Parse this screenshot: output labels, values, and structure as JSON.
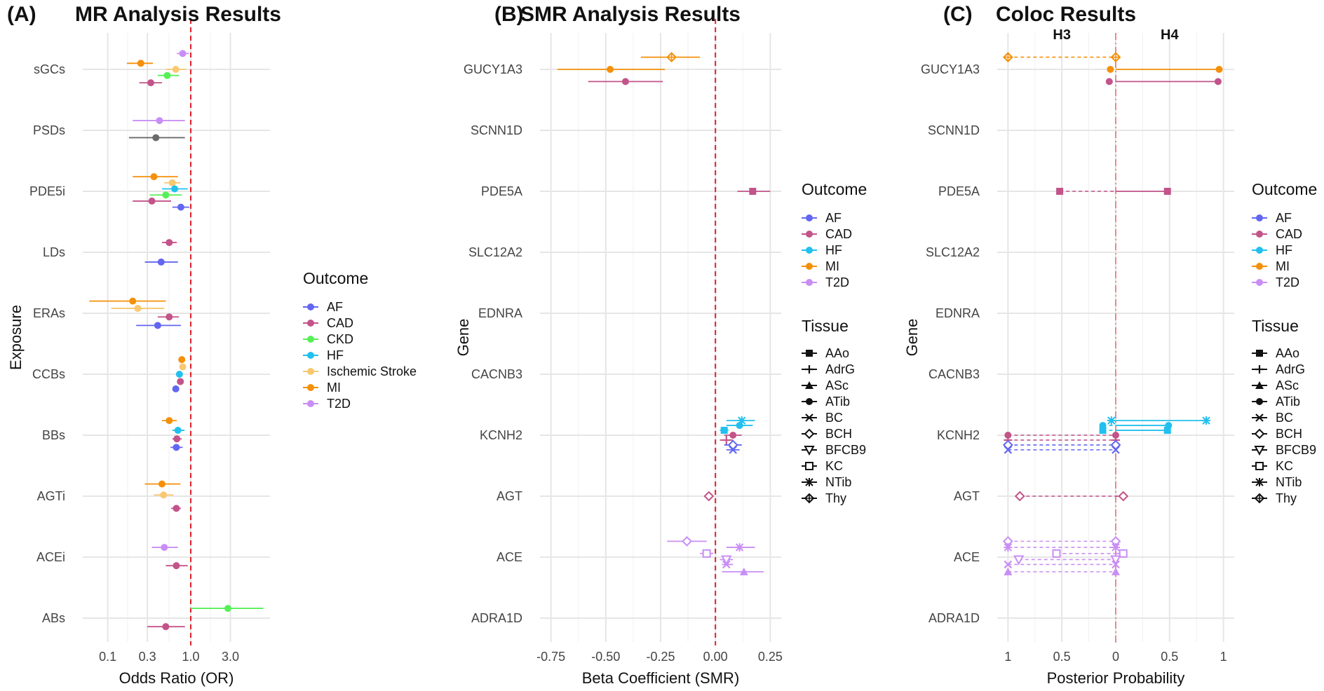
{
  "chart_data": [
    {
      "panel": "(A)",
      "title": "MR Analysis Results",
      "type": "forest",
      "xlabel": "Odds Ratio (OR)",
      "ylabel": "Exposure",
      "xscale": "log",
      "xticks": [
        0.1,
        0.3,
        1.0,
        3.0
      ],
      "xticklabels": [
        "0.1",
        "0.3",
        "1.0",
        "3.0"
      ],
      "xlim": [
        0.05,
        9
      ],
      "reference_line": 1.0,
      "categories": [
        "sGCs",
        "PSDs",
        "PDE5i",
        "LDs",
        "ERAs",
        "CCBs",
        "BBs",
        "AGTi",
        "ACEi",
        "ABs"
      ],
      "legend": {
        "title": "Outcome",
        "items": [
          {
            "name": "AF",
            "color": "#6366f1"
          },
          {
            "name": "CAD",
            "color": "#c2548a"
          },
          {
            "name": "CKD",
            "color": "#56f056"
          },
          {
            "name": "HF",
            "color": "#22c0ee"
          },
          {
            "name": "Ischemic Stroke",
            "color": "#f9c870"
          },
          {
            "name": "MI",
            "color": "#f5900a"
          },
          {
            "name": "T2D",
            "color": "#c98ef5"
          }
        ]
      },
      "points": [
        {
          "cat": "sGCs",
          "outcome": "T2D",
          "or": 0.8,
          "lo": 0.68,
          "hi": 0.95,
          "offset": -0.26
        },
        {
          "cat": "sGCs",
          "outcome": "MI",
          "or": 0.25,
          "lo": 0.17,
          "hi": 0.35,
          "offset": -0.1
        },
        {
          "cat": "sGCs",
          "outcome": "Ischemic Stroke",
          "or": 0.66,
          "lo": 0.5,
          "hi": 0.88,
          "offset": 0.0
        },
        {
          "cat": "sGCs",
          "outcome": "CKD",
          "or": 0.52,
          "lo": 0.4,
          "hi": 0.72,
          "offset": 0.1
        },
        {
          "cat": "sGCs",
          "outcome": "CAD",
          "or": 0.33,
          "lo": 0.24,
          "hi": 0.45,
          "offset": 0.22
        },
        {
          "cat": "PSDs",
          "outcome": "T2D",
          "or": 0.42,
          "lo": 0.2,
          "hi": 0.85,
          "offset": -0.16
        },
        {
          "cat": "PSDs",
          "outcome": "Unlabeled (grey)",
          "or": 0.38,
          "lo": 0.18,
          "hi": 0.85,
          "offset": 0.12
        },
        {
          "cat": "PDE5i",
          "outcome": "MI",
          "or": 0.36,
          "lo": 0.2,
          "hi": 0.7,
          "offset": -0.24
        },
        {
          "cat": "PDE5i",
          "outcome": "Ischemic Stroke",
          "or": 0.6,
          "lo": 0.48,
          "hi": 0.75,
          "offset": -0.14
        },
        {
          "cat": "PDE5i",
          "outcome": "HF",
          "or": 0.64,
          "lo": 0.45,
          "hi": 0.92,
          "offset": -0.04
        },
        {
          "cat": "PDE5i",
          "outcome": "CKD",
          "or": 0.5,
          "lo": 0.32,
          "hi": 0.78,
          "offset": 0.06
        },
        {
          "cat": "PDE5i",
          "outcome": "CAD",
          "or": 0.34,
          "lo": 0.2,
          "hi": 0.58,
          "offset": 0.16
        },
        {
          "cat": "PDE5i",
          "outcome": "AF",
          "or": 0.76,
          "lo": 0.6,
          "hi": 0.96,
          "offset": 0.26
        },
        {
          "cat": "LDs",
          "outcome": "CAD",
          "or": 0.55,
          "lo": 0.45,
          "hi": 0.68,
          "offset": -0.16
        },
        {
          "cat": "LDs",
          "outcome": "AF",
          "or": 0.44,
          "lo": 0.28,
          "hi": 0.7,
          "offset": 0.16
        },
        {
          "cat": "ERAs",
          "outcome": "MI",
          "or": 0.2,
          "lo": 0.06,
          "hi": 0.5,
          "offset": -0.2
        },
        {
          "cat": "ERAs",
          "outcome": "Ischemic Stroke",
          "or": 0.23,
          "lo": 0.11,
          "hi": 0.48,
          "offset": -0.08
        },
        {
          "cat": "ERAs",
          "outcome": "CAD",
          "or": 0.55,
          "lo": 0.4,
          "hi": 0.72,
          "offset": 0.06
        },
        {
          "cat": "ERAs",
          "outcome": "AF",
          "or": 0.4,
          "lo": 0.22,
          "hi": 0.76,
          "offset": 0.2
        },
        {
          "cat": "CCBs",
          "outcome": "MI",
          "or": 0.78,
          "lo": 0.72,
          "hi": 0.84,
          "offset": -0.24
        },
        {
          "cat": "CCBs",
          "outcome": "Ischemic Stroke",
          "or": 0.8,
          "lo": 0.73,
          "hi": 0.88,
          "offset": -0.12
        },
        {
          "cat": "CCBs",
          "outcome": "HF",
          "or": 0.73,
          "lo": 0.67,
          "hi": 0.8,
          "offset": 0.0
        },
        {
          "cat": "CCBs",
          "outcome": "CAD",
          "or": 0.75,
          "lo": 0.7,
          "hi": 0.81,
          "offset": 0.12
        },
        {
          "cat": "CCBs",
          "outcome": "AF",
          "or": 0.66,
          "lo": 0.62,
          "hi": 0.7,
          "offset": 0.24
        },
        {
          "cat": "BBs",
          "outcome": "MI",
          "or": 0.55,
          "lo": 0.45,
          "hi": 0.68,
          "offset": -0.24
        },
        {
          "cat": "BBs",
          "outcome": "HF",
          "or": 0.7,
          "lo": 0.6,
          "hi": 0.84,
          "offset": -0.08
        },
        {
          "cat": "BBs",
          "outcome": "CAD",
          "or": 0.68,
          "lo": 0.6,
          "hi": 0.78,
          "offset": 0.06
        },
        {
          "cat": "BBs",
          "outcome": "AF",
          "or": 0.67,
          "lo": 0.57,
          "hi": 0.8,
          "offset": 0.2
        },
        {
          "cat": "AGTi",
          "outcome": "MI",
          "or": 0.45,
          "lo": 0.28,
          "hi": 0.75,
          "offset": -0.2
        },
        {
          "cat": "AGTi",
          "outcome": "Ischemic Stroke",
          "or": 0.47,
          "lo": 0.36,
          "hi": 0.62,
          "offset": -0.02
        },
        {
          "cat": "AGTi",
          "outcome": "CAD",
          "or": 0.67,
          "lo": 0.58,
          "hi": 0.76,
          "offset": 0.2
        },
        {
          "cat": "ACEi",
          "outcome": "T2D",
          "or": 0.48,
          "lo": 0.34,
          "hi": 0.7,
          "offset": -0.16
        },
        {
          "cat": "ACEi",
          "outcome": "CAD",
          "or": 0.67,
          "lo": 0.5,
          "hi": 0.92,
          "offset": 0.14
        },
        {
          "cat": "ABs",
          "outcome": "CKD",
          "or": 2.8,
          "lo": 1.0,
          "hi": 7.5,
          "offset": -0.16
        },
        {
          "cat": "ABs",
          "outcome": "CAD",
          "or": 0.5,
          "lo": 0.3,
          "hi": 0.85,
          "offset": 0.14
        }
      ]
    },
    {
      "panel": "(B)",
      "title": "SMR Analysis Results",
      "type": "forest",
      "xlabel": "Beta Coefficient (SMR)",
      "ylabel": "Gene",
      "xticks": [
        -0.75,
        -0.5,
        -0.25,
        0.0,
        0.25
      ],
      "xticklabels": [
        "-0.75",
        "-0.50",
        "-0.25",
        "0.00",
        "0.25"
      ],
      "xlim": [
        -0.8,
        0.3
      ],
      "reference_line": 0.0,
      "categories": [
        "GUCY1A3",
        "SCNN1D",
        "PDE5A",
        "SLC12A2",
        "EDNRA",
        "CACNB3",
        "KCNH2",
        "AGT",
        "ACE",
        "ADRA1D"
      ],
      "legend_outcome": {
        "title": "Outcome",
        "items": [
          {
            "name": "AF",
            "color": "#6366f1"
          },
          {
            "name": "CAD",
            "color": "#c2548a"
          },
          {
            "name": "HF",
            "color": "#22c0ee"
          },
          {
            "name": "MI",
            "color": "#f5900a"
          },
          {
            "name": "T2D",
            "color": "#c98ef5"
          }
        ]
      },
      "legend_tissue": {
        "title": "Tissue",
        "items": [
          {
            "name": "AAo",
            "shape": "square"
          },
          {
            "name": "AdrG",
            "shape": "plus"
          },
          {
            "name": "ASc",
            "shape": "triangle"
          },
          {
            "name": "ATib",
            "shape": "circle"
          },
          {
            "name": "BC",
            "shape": "cross"
          },
          {
            "name": "BCH",
            "shape": "diamond-open"
          },
          {
            "name": "BFCB9",
            "shape": "triangle-down-open"
          },
          {
            "name": "KC",
            "shape": "square-open"
          },
          {
            "name": "NTib",
            "shape": "asterisk"
          },
          {
            "name": "Thy",
            "shape": "diamond-plus"
          }
        ]
      },
      "points": [
        {
          "cat": "GUCY1A3",
          "outcome": "MI",
          "tissue": "Thy",
          "beta": -0.2,
          "lo": -0.34,
          "hi": -0.07,
          "offset": -0.2
        },
        {
          "cat": "GUCY1A3",
          "outcome": "MI",
          "tissue": "ATib",
          "beta": -0.48,
          "lo": -0.72,
          "hi": -0.23,
          "offset": 0.0
        },
        {
          "cat": "GUCY1A3",
          "outcome": "CAD",
          "tissue": "ATib",
          "beta": -0.41,
          "lo": -0.58,
          "hi": -0.24,
          "offset": 0.2
        },
        {
          "cat": "PDE5A",
          "outcome": "CAD",
          "tissue": "AAo",
          "beta": 0.17,
          "lo": 0.1,
          "hi": 0.25,
          "offset": 0.0
        },
        {
          "cat": "KCNH2",
          "outcome": "HF",
          "tissue": "NTib",
          "beta": 0.12,
          "lo": 0.05,
          "hi": 0.18,
          "offset": -0.24
        },
        {
          "cat": "KCNH2",
          "outcome": "HF",
          "tissue": "ATib",
          "beta": 0.11,
          "lo": 0.05,
          "hi": 0.17,
          "offset": -0.16
        },
        {
          "cat": "KCNH2",
          "outcome": "HF",
          "tissue": "AAo",
          "beta": 0.04,
          "lo": 0.02,
          "hi": 0.06,
          "offset": -0.08
        },
        {
          "cat": "KCNH2",
          "outcome": "CAD",
          "tissue": "ATib",
          "beta": 0.08,
          "lo": 0.04,
          "hi": 0.12,
          "offset": 0.0
        },
        {
          "cat": "KCNH2",
          "outcome": "CAD",
          "tissue": "AdrG",
          "beta": 0.05,
          "lo": 0.02,
          "hi": 0.08,
          "offset": 0.08
        },
        {
          "cat": "KCNH2",
          "outcome": "AF",
          "tissue": "BCH",
          "beta": 0.08,
          "lo": 0.04,
          "hi": 0.12,
          "offset": 0.16
        },
        {
          "cat": "KCNH2",
          "outcome": "AF",
          "tissue": "BC",
          "beta": 0.08,
          "lo": 0.05,
          "hi": 0.11,
          "offset": 0.24
        },
        {
          "cat": "AGT",
          "outcome": "CAD",
          "tissue": "BCH",
          "beta": -0.03,
          "lo": -0.05,
          "hi": -0.01,
          "offset": 0.0
        },
        {
          "cat": "ACE",
          "outcome": "T2D",
          "tissue": "BCH",
          "beta": -0.13,
          "lo": -0.22,
          "hi": -0.04,
          "offset": -0.26
        },
        {
          "cat": "ACE",
          "outcome": "T2D",
          "tissue": "NTib",
          "beta": 0.11,
          "lo": 0.05,
          "hi": 0.18,
          "offset": -0.16
        },
        {
          "cat": "ACE",
          "outcome": "T2D",
          "tissue": "KC",
          "beta": -0.04,
          "lo": -0.07,
          "hi": -0.01,
          "offset": -0.06
        },
        {
          "cat": "ACE",
          "outcome": "T2D",
          "tissue": "BFCB9",
          "beta": 0.05,
          "lo": 0.02,
          "hi": 0.08,
          "offset": 0.04
        },
        {
          "cat": "ACE",
          "outcome": "T2D",
          "tissue": "BC",
          "beta": 0.05,
          "lo": 0.03,
          "hi": 0.08,
          "offset": 0.12
        },
        {
          "cat": "ACE",
          "outcome": "T2D",
          "tissue": "ASc",
          "beta": 0.13,
          "lo": 0.03,
          "hi": 0.22,
          "offset": 0.24
        }
      ]
    },
    {
      "panel": "(C)",
      "title": "Coloc Results",
      "type": "dumbbell",
      "xlabel": "Posterior Probability",
      "ylabel": "Gene",
      "xticks": [
        -1,
        -0.5,
        0,
        0.5,
        1
      ],
      "xticklabels": [
        "1",
        "0.5",
        "0",
        "0.5",
        "1"
      ],
      "xlim": [
        -1.1,
        1.1
      ],
      "side_labels": {
        "left": "H3",
        "right": "H4"
      },
      "categories": [
        "GUCY1A3",
        "SCNN1D",
        "PDE5A",
        "SLC12A2",
        "EDNRA",
        "CACNB3",
        "KCNH2",
        "AGT",
        "ACE",
        "ADRA1D"
      ],
      "legend_outcome": {
        "title": "Outcome",
        "items": [
          {
            "name": "AF",
            "color": "#6366f1"
          },
          {
            "name": "CAD",
            "color": "#c2548a"
          },
          {
            "name": "HF",
            "color": "#22c0ee"
          },
          {
            "name": "MI",
            "color": "#f5900a"
          },
          {
            "name": "T2D",
            "color": "#c98ef5"
          }
        ]
      },
      "legend_tissue": {
        "title": "Tissue",
        "items": [
          {
            "name": "AAo",
            "shape": "square"
          },
          {
            "name": "AdrG",
            "shape": "plus"
          },
          {
            "name": "ASc",
            "shape": "triangle"
          },
          {
            "name": "ATib",
            "shape": "circle"
          },
          {
            "name": "BC",
            "shape": "cross"
          },
          {
            "name": "BCH",
            "shape": "diamond-open"
          },
          {
            "name": "BFCB9",
            "shape": "triangle-down-open"
          },
          {
            "name": "KC",
            "shape": "square-open"
          },
          {
            "name": "NTib",
            "shape": "asterisk"
          },
          {
            "name": "Thy",
            "shape": "diamond-plus"
          }
        ]
      },
      "points": [
        {
          "cat": "GUCY1A3",
          "outcome": "MI",
          "tissue": "Thy",
          "h3": 1.0,
          "h4": 0.0,
          "offset": -0.2
        },
        {
          "cat": "GUCY1A3",
          "outcome": "MI",
          "tissue": "ATib",
          "h3": 0.05,
          "h4": 0.96,
          "offset": 0.0
        },
        {
          "cat": "GUCY1A3",
          "outcome": "CAD",
          "tissue": "ATib",
          "h3": 0.06,
          "h4": 0.95,
          "offset": 0.2
        },
        {
          "cat": "PDE5A",
          "outcome": "CAD",
          "tissue": "AAo",
          "h3": 0.52,
          "h4": 0.48,
          "offset": 0.0
        },
        {
          "cat": "KCNH2",
          "outcome": "HF",
          "tissue": "NTib",
          "h3": 0.04,
          "h4": 0.84,
          "offset": -0.24
        },
        {
          "cat": "KCNH2",
          "outcome": "HF",
          "tissue": "ATib",
          "h3": 0.12,
          "h4": 0.49,
          "offset": -0.16
        },
        {
          "cat": "KCNH2",
          "outcome": "HF",
          "tissue": "AAo",
          "h3": 0.12,
          "h4": 0.48,
          "offset": -0.08
        },
        {
          "cat": "KCNH2",
          "outcome": "CAD",
          "tissue": "ATib",
          "h3": 1.0,
          "h4": 0.0,
          "offset": 0.0
        },
        {
          "cat": "KCNH2",
          "outcome": "CAD",
          "tissue": "AdrG",
          "h3": 1.0,
          "h4": 0.0,
          "offset": 0.08
        },
        {
          "cat": "KCNH2",
          "outcome": "AF",
          "tissue": "BCH",
          "h3": 1.0,
          "h4": 0.0,
          "offset": 0.16
        },
        {
          "cat": "KCNH2",
          "outcome": "AF",
          "tissue": "BC",
          "h3": 1.0,
          "h4": 0.0,
          "offset": 0.24
        },
        {
          "cat": "AGT",
          "outcome": "CAD",
          "tissue": "BCH",
          "h3": 0.89,
          "h4": 0.07,
          "offset": 0.0
        },
        {
          "cat": "ACE",
          "outcome": "T2D",
          "tissue": "BCH",
          "h3": 1.0,
          "h4": 0.0,
          "offset": -0.26
        },
        {
          "cat": "ACE",
          "outcome": "T2D",
          "tissue": "NTib",
          "h3": 1.0,
          "h4": 0.0,
          "offset": -0.16
        },
        {
          "cat": "ACE",
          "outcome": "T2D",
          "tissue": "KC",
          "h3": 0.55,
          "h4": 0.07,
          "offset": -0.06
        },
        {
          "cat": "ACE",
          "outcome": "T2D",
          "tissue": "BFCB9",
          "h3": 0.9,
          "h4": 0.0,
          "offset": 0.04
        },
        {
          "cat": "ACE",
          "outcome": "T2D",
          "tissue": "BC",
          "h3": 1.0,
          "h4": 0.0,
          "offset": 0.12
        },
        {
          "cat": "ACE",
          "outcome": "T2D",
          "tissue": "ASc",
          "h3": 1.0,
          "h4": 0.0,
          "offset": 0.24
        }
      ]
    }
  ],
  "colors": {
    "AF": "#6366f1",
    "CAD": "#c2548a",
    "CKD": "#56f056",
    "HF": "#22c0ee",
    "Ischemic Stroke": "#f9c870",
    "MI": "#f5900a",
    "T2D": "#c98ef5",
    "Unlabeled (grey)": "#6b6b6b",
    "reference": "#e0202a",
    "grid": "#e6e6e6"
  }
}
